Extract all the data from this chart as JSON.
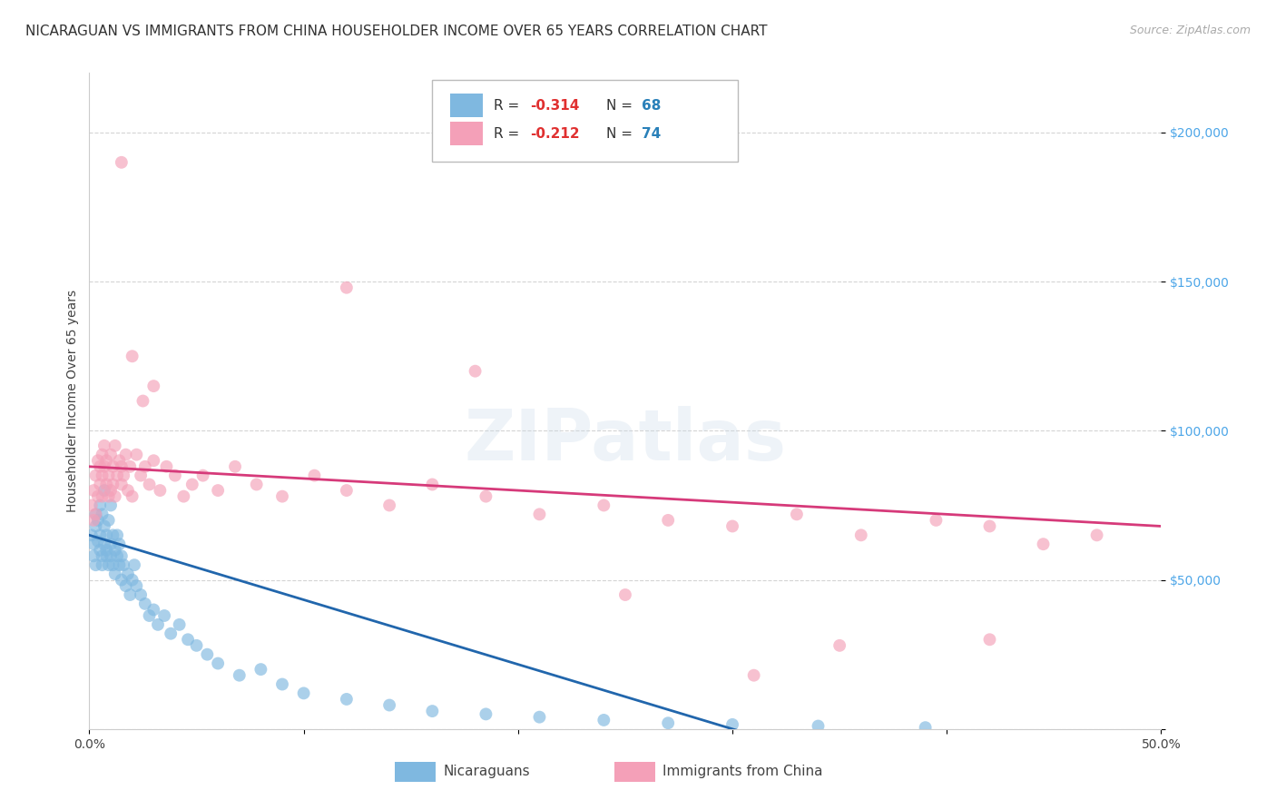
{
  "title": "NICARAGUAN VS IMMIGRANTS FROM CHINA HOUSEHOLDER INCOME OVER 65 YEARS CORRELATION CHART",
  "source": "Source: ZipAtlas.com",
  "ylabel": "Householder Income Over 65 years",
  "xlim": [
    0.0,
    0.5
  ],
  "ylim": [
    0,
    220000
  ],
  "ytick_vals": [
    0,
    50000,
    100000,
    150000,
    200000
  ],
  "ytick_labels": [
    "",
    "$50,000",
    "$100,000",
    "$150,000",
    "$200,000"
  ],
  "xtick_vals": [
    0.0,
    0.1,
    0.2,
    0.3,
    0.4,
    0.5
  ],
  "xtick_labels": [
    "0.0%",
    "",
    "",
    "",
    "",
    "50.0%"
  ],
  "background_color": "#ffffff",
  "grid_color": "#d0d0d0",
  "watermark": "ZIPatlas",
  "scatter_color_blue": "#7fb8e0",
  "scatter_color_pink": "#f4a0b8",
  "line_color_blue": "#2166ac",
  "line_color_pink": "#d63a7a",
  "title_fontsize": 11,
  "axis_label_fontsize": 10,
  "tick_label_color": "#4da6e8",
  "nicaraguan_x": [
    0.001,
    0.002,
    0.002,
    0.003,
    0.003,
    0.003,
    0.004,
    0.004,
    0.005,
    0.005,
    0.005,
    0.006,
    0.006,
    0.006,
    0.007,
    0.007,
    0.007,
    0.008,
    0.008,
    0.008,
    0.009,
    0.009,
    0.01,
    0.01,
    0.01,
    0.011,
    0.011,
    0.012,
    0.012,
    0.013,
    0.013,
    0.014,
    0.014,
    0.015,
    0.015,
    0.016,
    0.017,
    0.018,
    0.019,
    0.02,
    0.021,
    0.022,
    0.024,
    0.026,
    0.028,
    0.03,
    0.032,
    0.035,
    0.038,
    0.042,
    0.046,
    0.05,
    0.055,
    0.06,
    0.07,
    0.08,
    0.09,
    0.1,
    0.12,
    0.14,
    0.16,
    0.185,
    0.21,
    0.24,
    0.27,
    0.3,
    0.34,
    0.39
  ],
  "nicaraguan_y": [
    65000,
    62000,
    58000,
    72000,
    55000,
    68000,
    63000,
    70000,
    75000,
    60000,
    65000,
    58000,
    72000,
    55000,
    80000,
    62000,
    68000,
    58000,
    65000,
    60000,
    55000,
    70000,
    62000,
    58000,
    75000,
    65000,
    55000,
    60000,
    52000,
    65000,
    58000,
    55000,
    62000,
    50000,
    58000,
    55000,
    48000,
    52000,
    45000,
    50000,
    55000,
    48000,
    45000,
    42000,
    38000,
    40000,
    35000,
    38000,
    32000,
    35000,
    30000,
    28000,
    25000,
    22000,
    18000,
    20000,
    15000,
    12000,
    10000,
    8000,
    6000,
    5000,
    4000,
    3000,
    2000,
    1500,
    1000,
    500
  ],
  "china_x": [
    0.001,
    0.002,
    0.002,
    0.003,
    0.003,
    0.004,
    0.004,
    0.005,
    0.005,
    0.006,
    0.006,
    0.006,
    0.007,
    0.007,
    0.008,
    0.008,
    0.009,
    0.009,
    0.01,
    0.01,
    0.011,
    0.011,
    0.012,
    0.012,
    0.013,
    0.014,
    0.015,
    0.015,
    0.016,
    0.017,
    0.018,
    0.019,
    0.02,
    0.022,
    0.024,
    0.026,
    0.028,
    0.03,
    0.033,
    0.036,
    0.04,
    0.044,
    0.048,
    0.053,
    0.06,
    0.068,
    0.078,
    0.09,
    0.105,
    0.12,
    0.14,
    0.16,
    0.185,
    0.21,
    0.24,
    0.27,
    0.3,
    0.33,
    0.36,
    0.395,
    0.42,
    0.445,
    0.47,
    0.015,
    0.02,
    0.025,
    0.03,
    0.25,
    0.31,
    0.35,
    0.12,
    0.18,
    0.42
  ],
  "china_y": [
    75000,
    80000,
    70000,
    85000,
    72000,
    90000,
    78000,
    88000,
    82000,
    92000,
    85000,
    78000,
    95000,
    88000,
    82000,
    90000,
    85000,
    78000,
    92000,
    80000,
    88000,
    82000,
    95000,
    78000,
    85000,
    90000,
    88000,
    82000,
    85000,
    92000,
    80000,
    88000,
    78000,
    92000,
    85000,
    88000,
    82000,
    90000,
    80000,
    88000,
    85000,
    78000,
    82000,
    85000,
    80000,
    88000,
    82000,
    78000,
    85000,
    80000,
    75000,
    82000,
    78000,
    72000,
    75000,
    70000,
    68000,
    72000,
    65000,
    70000,
    68000,
    62000,
    65000,
    190000,
    125000,
    110000,
    115000,
    45000,
    18000,
    28000,
    148000,
    120000,
    30000
  ]
}
